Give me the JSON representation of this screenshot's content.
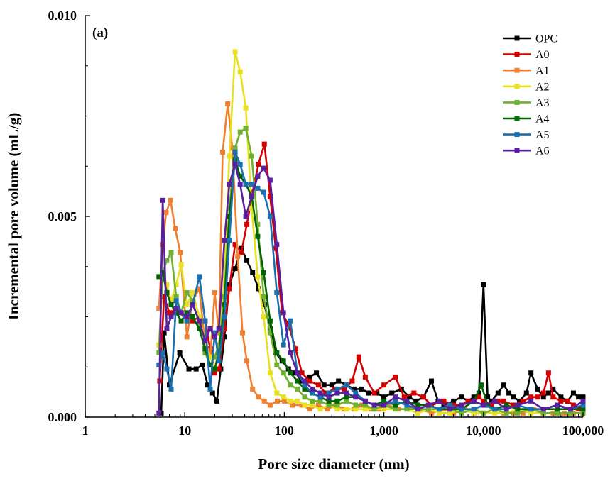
{
  "chart_data": {
    "type": "line",
    "title": "",
    "panel_label": "(a)",
    "xlabel": "Pore size diameter (nm)",
    "ylabel": "Incremental pore volume (mL/g)",
    "xscale": "log",
    "xlim": [
      1,
      100000
    ],
    "ylim": [
      0,
      0.01
    ],
    "x_ticks": [
      1,
      10,
      100,
      1000,
      10000,
      100000
    ],
    "x_tick_labels": [
      "1",
      "10",
      "100",
      "1,000",
      "10,000",
      "100,000"
    ],
    "y_ticks": [
      0,
      0.005,
      0.01
    ],
    "y_tick_labels": [
      "0.000",
      "0.005",
      "0.010"
    ],
    "legend_position": "top-right",
    "series": [
      {
        "name": "OPC",
        "color": "#000000",
        "x": [
          5.8,
          6.2,
          7,
          8.9,
          11,
          13,
          15,
          17,
          19,
          21,
          23,
          25,
          28,
          32,
          37,
          42,
          48,
          55,
          63,
          72,
          82,
          95,
          110,
          130,
          150,
          180,
          210,
          250,
          300,
          350,
          420,
          500,
          600,
          700,
          850,
          1000,
          1200,
          1500,
          1800,
          2100,
          2500,
          3000,
          3500,
          4000,
          5000,
          6000,
          7000,
          8000,
          9000,
          10000,
          11000,
          12000,
          14000,
          16000,
          18000,
          20000,
          23000,
          27000,
          30000,
          35000,
          40000,
          45000,
          50000,
          60000,
          70000,
          80000,
          90000,
          100000
        ],
        "y": [
          0.0001,
          0.0021,
          0.0008,
          0.0016,
          0.0012,
          0.0012,
          0.0013,
          0.0008,
          0.0006,
          0.0004,
          0.0012,
          0.002,
          0.0033,
          0.0037,
          0.0042,
          0.0039,
          0.0036,
          0.0032,
          0.0028,
          0.0022,
          0.0016,
          0.0014,
          0.0012,
          0.0011,
          0.0009,
          0.001,
          0.0011,
          0.0008,
          0.0008,
          0.0009,
          0.0008,
          0.0007,
          0.0007,
          0.0006,
          0.0006,
          0.0005,
          0.0006,
          0.0007,
          0.0005,
          0.0004,
          0.0005,
          0.0009,
          0.0004,
          0.0003,
          0.0004,
          0.0005,
          0.0004,
          0.0005,
          0.0006,
          0.0033,
          0.0005,
          0.0004,
          0.0006,
          0.0008,
          0.0006,
          0.0005,
          0.0004,
          0.0006,
          0.0011,
          0.0007,
          0.0005,
          0.0006,
          0.0007,
          0.0005,
          0.0004,
          0.0006,
          0.0005,
          0.0005
        ]
      },
      {
        "name": "A0",
        "color": "#d40000",
        "x": [
          5.6,
          6.2,
          7,
          7.8,
          9,
          10.5,
          12,
          14,
          16,
          18,
          20,
          22,
          25,
          28,
          32,
          37,
          42,
          48,
          55,
          63,
          72,
          82,
          95,
          110,
          130,
          150,
          180,
          220,
          260,
          320,
          400,
          480,
          560,
          650,
          800,
          1000,
          1300,
          1600,
          2000,
          2500,
          3000,
          4000,
          5000,
          6000,
          7000,
          8000,
          9000,
          10000,
          12000,
          14000,
          16000,
          20000,
          25000,
          30000,
          35000,
          40000,
          45000,
          50000,
          60000,
          70000,
          80000,
          90000,
          100000
        ],
        "y": [
          0.0009,
          0.003,
          0.0026,
          0.0026,
          0.0026,
          0.0024,
          0.0024,
          0.0025,
          0.0024,
          0.0017,
          0.0011,
          0.0012,
          0.0022,
          0.0032,
          0.0043,
          0.0041,
          0.0048,
          0.0056,
          0.0063,
          0.0068,
          0.0055,
          0.0042,
          0.0026,
          0.0023,
          0.0017,
          0.0011,
          0.0009,
          0.0008,
          0.0006,
          0.0007,
          0.0007,
          0.0009,
          0.0015,
          0.001,
          0.0006,
          0.0008,
          0.001,
          0.0005,
          0.0006,
          0.0005,
          0.0003,
          0.0004,
          0.0003,
          0.0003,
          0.0004,
          0.0004,
          0.0005,
          0.0004,
          0.0003,
          0.0004,
          0.0004,
          0.0003,
          0.0004,
          0.0005,
          0.0005,
          0.0006,
          0.0011,
          0.0005,
          0.0004,
          0.0004,
          0.0003,
          0.0002,
          0.0003
        ]
      },
      {
        "name": "A1",
        "color": "#f08030",
        "x": [
          5.5,
          6,
          6.5,
          7.2,
          8,
          9,
          10.5,
          12,
          14,
          16,
          18,
          20,
          22,
          24,
          27,
          30,
          34,
          38,
          42,
          48,
          55,
          63,
          72,
          85,
          100,
          120,
          150,
          180,
          220,
          270,
          330,
          400,
          500,
          600,
          750,
          900,
          1100,
          1400,
          1800,
          2300,
          3000,
          4000,
          5000,
          6500,
          8000,
          10000,
          13000,
          16000,
          20000,
          25000,
          32000,
          40000,
          50000,
          65000,
          80000,
          100000
        ],
        "y": [
          0.0027,
          0.0043,
          0.0051,
          0.0054,
          0.0047,
          0.0041,
          0.002,
          0.0029,
          0.0032,
          0.0018,
          0.0015,
          0.0031,
          0.0021,
          0.0066,
          0.0078,
          0.0067,
          0.004,
          0.0021,
          0.0014,
          0.0007,
          0.0005,
          0.0004,
          0.0003,
          0.0004,
          0.0004,
          0.0003,
          0.0003,
          0.0002,
          0.0003,
          0.0002,
          0.0003,
          0.0002,
          0.0002,
          0.0003,
          0.0002,
          0.0002,
          0.0003,
          0.0002,
          0.0002,
          0.0002,
          0.0001,
          0.0002,
          0.0001,
          0.0002,
          0.0001,
          0.0001,
          0.0002,
          0.0001,
          0.0001,
          0.0001,
          0.0002,
          0.0001,
          0.0001,
          0.0001,
          0.0001,
          0.0001
        ]
      },
      {
        "name": "A2",
        "color": "#e8e020",
        "x": [
          5.5,
          6,
          6.6,
          7.3,
          8.2,
          9.2,
          10.5,
          12,
          14,
          16,
          18,
          20,
          22,
          25,
          28,
          32,
          36,
          41,
          47,
          54,
          62,
          72,
          84,
          98,
          115,
          135,
          160,
          190,
          230,
          280,
          340,
          420,
          520,
          650,
          800,
          1000,
          1300,
          1700,
          2200,
          2800,
          3600,
          4600,
          6000,
          8000,
          10000,
          13000,
          17000,
          22000,
          30000,
          40000,
          55000,
          75000,
          100000
        ],
        "y": [
          0.0018,
          0.0036,
          0.0033,
          0.0029,
          0.0033,
          0.0038,
          0.0028,
          0.0031,
          0.0025,
          0.0019,
          0.0015,
          0.0012,
          0.0017,
          0.0035,
          0.0065,
          0.0091,
          0.0086,
          0.0077,
          0.0052,
          0.0035,
          0.0025,
          0.0011,
          0.0006,
          0.0005,
          0.0004,
          0.0004,
          0.0003,
          0.0003,
          0.0002,
          0.0003,
          0.0002,
          0.0002,
          0.0002,
          0.0002,
          0.0002,
          0.0002,
          0.0002,
          0.0002,
          0.0001,
          0.0002,
          0.0001,
          0.0001,
          0.0002,
          0.0001,
          0.0001,
          0.0001,
          0.0001,
          0.0002,
          0.0001,
          0.0001,
          0.0001,
          0.0001,
          0.0001
        ]
      },
      {
        "name": "A3",
        "color": "#70b030",
        "x": [
          5.5,
          6,
          6.6,
          7.3,
          8.2,
          9.2,
          10.5,
          12,
          14,
          16,
          18,
          20,
          22,
          25,
          28,
          32,
          36,
          41,
          47,
          54,
          62,
          72,
          84,
          98,
          115,
          135,
          160,
          190,
          230,
          280,
          340,
          420,
          520,
          650,
          800,
          1000,
          1300,
          1700,
          2200,
          2800,
          3600,
          4600,
          6000,
          8000,
          10000,
          13000,
          17000,
          22000,
          30000,
          40000,
          55000,
          75000,
          100000
        ],
        "y": [
          0.0016,
          0.0036,
          0.0039,
          0.0041,
          0.003,
          0.0026,
          0.0031,
          0.0029,
          0.0023,
          0.0016,
          0.0013,
          0.0015,
          0.0018,
          0.003,
          0.0052,
          0.0067,
          0.0071,
          0.0072,
          0.0065,
          0.0048,
          0.003,
          0.0021,
          0.0013,
          0.0011,
          0.0008,
          0.0007,
          0.0005,
          0.0004,
          0.0004,
          0.0003,
          0.0003,
          0.0004,
          0.0003,
          0.0003,
          0.0002,
          0.0003,
          0.0002,
          0.0002,
          0.0002,
          0.0002,
          0.0002,
          0.0002,
          0.0001,
          0.0002,
          0.0001,
          0.0002,
          0.0001,
          0.0001,
          0.0002,
          0.0001,
          0.0001,
          0.0001,
          0.0001
        ]
      },
      {
        "name": "A4",
        "color": "#006400",
        "x": [
          5.5,
          6,
          6.6,
          7.3,
          8.2,
          9.2,
          10.5,
          12,
          14,
          16,
          18,
          20,
          22,
          25,
          28,
          32,
          36,
          41,
          47,
          54,
          62,
          72,
          84,
          98,
          115,
          135,
          160,
          190,
          230,
          280,
          340,
          420,
          520,
          650,
          800,
          1000,
          1300,
          1700,
          2200,
          2800,
          3600,
          4600,
          6000,
          8000,
          9500,
          11000,
          13000,
          17000,
          22000,
          30000,
          40000,
          55000,
          75000,
          100000
        ],
        "y": [
          0.0035,
          0.0036,
          0.0031,
          0.0028,
          0.0026,
          0.0024,
          0.0026,
          0.0025,
          0.0022,
          0.0017,
          0.0013,
          0.0012,
          0.0016,
          0.0028,
          0.005,
          0.0064,
          0.006,
          0.0058,
          0.0055,
          0.0045,
          0.0036,
          0.0024,
          0.0016,
          0.0014,
          0.0011,
          0.0009,
          0.0007,
          0.0006,
          0.0005,
          0.0004,
          0.0004,
          0.0005,
          0.0005,
          0.0004,
          0.0003,
          0.0004,
          0.0003,
          0.0004,
          0.0003,
          0.0003,
          0.0002,
          0.0002,
          0.0002,
          0.0004,
          0.0008,
          0.0003,
          0.0002,
          0.0003,
          0.0002,
          0.0002,
          0.0002,
          0.0002,
          0.0002,
          0.0002
        ]
      },
      {
        "name": "A5",
        "color": "#1a6fb0",
        "x": [
          5.5,
          6,
          6.6,
          7.3,
          8.2,
          9.2,
          10.5,
          12,
          14,
          16,
          18,
          20,
          22,
          25,
          28,
          32,
          36,
          41,
          47,
          54,
          62,
          72,
          84,
          98,
          115,
          135,
          160,
          190,
          230,
          280,
          340,
          420,
          520,
          650,
          800,
          1000,
          1300,
          1700,
          2200,
          2800,
          3600,
          4600,
          6000,
          8000,
          10000,
          13000,
          17000,
          22000,
          30000,
          40000,
          55000,
          75000,
          100000
        ],
        "y": [
          0.0013,
          0.0016,
          0.0012,
          0.0007,
          0.0029,
          0.0026,
          0.0024,
          0.0028,
          0.0035,
          0.0024,
          0.0007,
          0.0021,
          0.0014,
          0.0025,
          0.0044,
          0.0066,
          0.0063,
          0.0058,
          0.0058,
          0.0057,
          0.0056,
          0.005,
          0.0031,
          0.0018,
          0.0024,
          0.0011,
          0.0008,
          0.0006,
          0.0005,
          0.0006,
          0.0007,
          0.0008,
          0.0006,
          0.0004,
          0.0003,
          0.0003,
          0.0004,
          0.0003,
          0.0002,
          0.0003,
          0.0002,
          0.0003,
          0.0002,
          0.0002,
          0.0003,
          0.0002,
          0.0002,
          0.0003,
          0.0002,
          0.0002,
          0.0003,
          0.0002,
          0.0003
        ]
      },
      {
        "name": "A6",
        "color": "#5a1fa0",
        "x": [
          5.5,
          6,
          6.6,
          7.3,
          8.2,
          9.2,
          10.5,
          12,
          14,
          16,
          18,
          20,
          22,
          25,
          28,
          32,
          36,
          41,
          47,
          54,
          62,
          72,
          84,
          98,
          115,
          135,
          160,
          190,
          230,
          280,
          340,
          420,
          520,
          650,
          800,
          1000,
          1300,
          1700,
          2200,
          2800,
          3600,
          4600,
          6000,
          8000,
          10000,
          13000,
          17000,
          22000,
          30000,
          40000,
          55000,
          75000,
          100000
        ],
        "y": [
          0.0001,
          0.0054,
          0.0022,
          0.0025,
          0.0027,
          0.0026,
          0.0025,
          0.0028,
          0.0024,
          0.0019,
          0.0022,
          0.002,
          0.0022,
          0.0044,
          0.0058,
          0.0063,
          0.0058,
          0.005,
          0.0055,
          0.006,
          0.0062,
          0.0059,
          0.0043,
          0.0026,
          0.0016,
          0.0011,
          0.0009,
          0.0007,
          0.0006,
          0.0005,
          0.0006,
          0.0006,
          0.0005,
          0.0004,
          0.0003,
          0.0003,
          0.0005,
          0.0004,
          0.0002,
          0.0003,
          0.0004,
          0.0002,
          0.0003,
          0.0004,
          0.0003,
          0.0004,
          0.0002,
          0.0003,
          0.0004,
          0.0002,
          0.0003,
          0.0002,
          0.0004
        ]
      }
    ]
  }
}
